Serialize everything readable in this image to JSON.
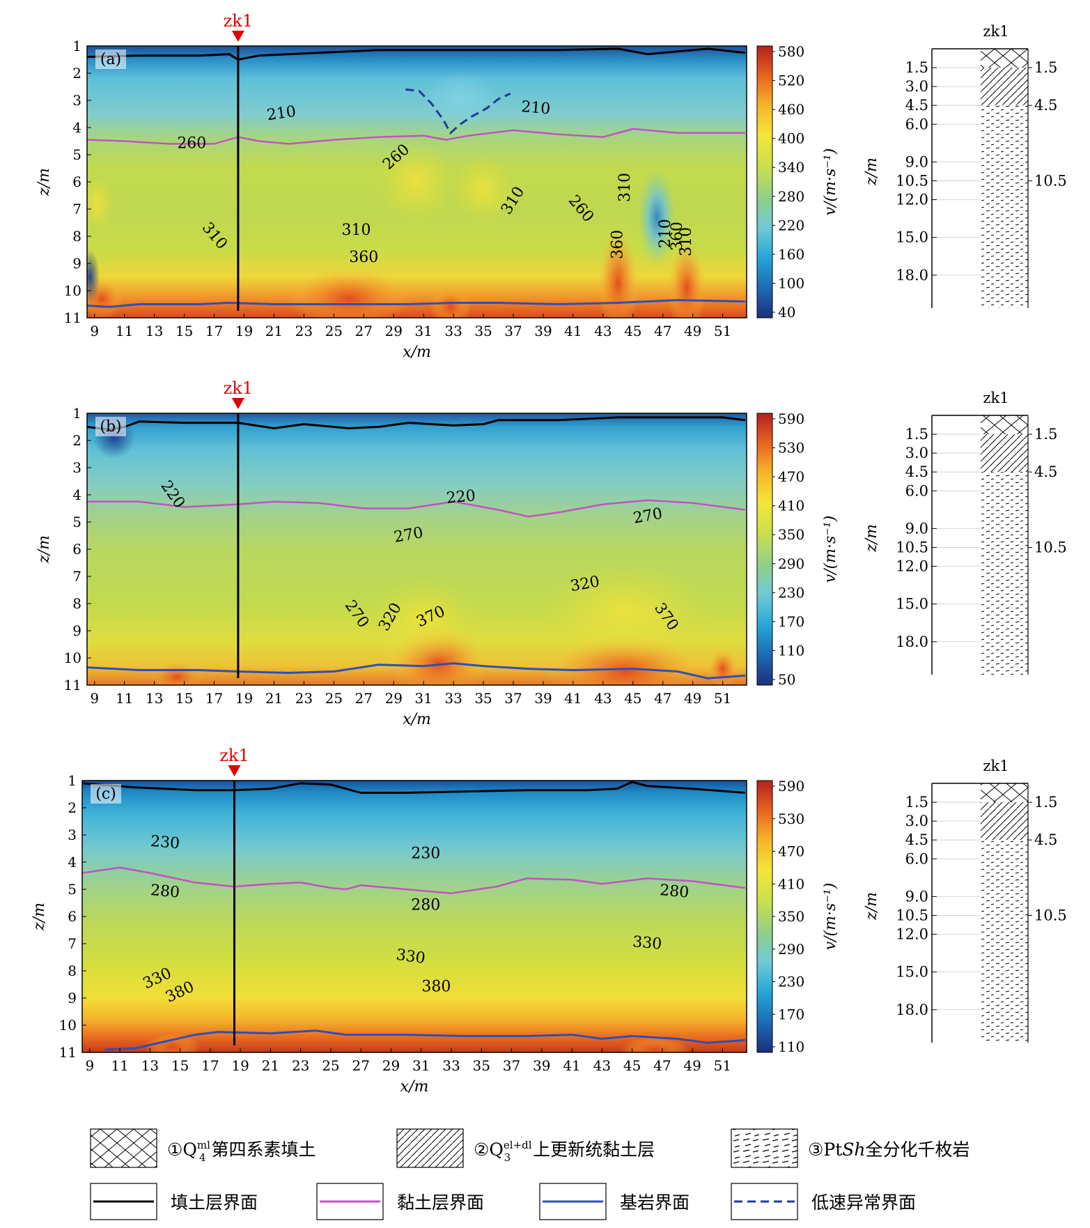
{
  "panels": [
    {
      "label": "(a)",
      "borehole": "zk1",
      "colorbar": {
        "ticks": [
          40,
          100,
          160,
          220,
          280,
          340,
          400,
          460,
          520,
          580
        ],
        "label": "v/(m·s⁻¹)"
      },
      "contour_labels": [
        {
          "text": "210",
          "x": 21.5,
          "z": 3.5,
          "rot": -8
        },
        {
          "text": "210",
          "x": 38.5,
          "z": 3.3,
          "rot": 5
        },
        {
          "text": "260",
          "x": 15.5,
          "z": 4.6,
          "rot": 0
        },
        {
          "text": "260",
          "x": 29.2,
          "z": 5.1,
          "rot": -42
        },
        {
          "text": "310",
          "x": 17.0,
          "z": 8.0,
          "rot": 50
        },
        {
          "text": "310",
          "x": 26.5,
          "z": 7.8,
          "rot": 0
        },
        {
          "text": "360",
          "x": 27.0,
          "z": 8.8,
          "rot": 0
        },
        {
          "text": "310",
          "x": 37.0,
          "z": 6.7,
          "rot": -58
        },
        {
          "text": "260",
          "x": 41.5,
          "z": 7.0,
          "rot": 50
        },
        {
          "text": "310",
          "x": 44.5,
          "z": 6.2,
          "rot": -90
        },
        {
          "text": "360",
          "x": 44.0,
          "z": 8.3,
          "rot": -90
        },
        {
          "text": "210",
          "x": 47.2,
          "z": 7.9,
          "rot": -90
        },
        {
          "text": "360",
          "x": 48.0,
          "z": 8.0,
          "rot": -90
        },
        {
          "text": "310",
          "x": 48.6,
          "z": 8.2,
          "rot": -90
        }
      ],
      "fill_boundary": [
        [
          8.5,
          1.4
        ],
        [
          12,
          1.35
        ],
        [
          16,
          1.35
        ],
        [
          18,
          1.3
        ],
        [
          18.6,
          1.5
        ],
        [
          20,
          1.35
        ],
        [
          24,
          1.25
        ],
        [
          28,
          1.15
        ],
        [
          30,
          1.15
        ],
        [
          32,
          1.15
        ],
        [
          36,
          1.15
        ],
        [
          40,
          1.15
        ],
        [
          44,
          1.1
        ],
        [
          46,
          1.3
        ],
        [
          48,
          1.2
        ],
        [
          50,
          1.1
        ],
        [
          52.5,
          1.25
        ]
      ],
      "clay_boundary": [
        [
          8.5,
          4.45
        ],
        [
          11,
          4.5
        ],
        [
          14,
          4.6
        ],
        [
          17,
          4.6
        ],
        [
          18.6,
          4.35
        ],
        [
          20,
          4.5
        ],
        [
          22,
          4.6
        ],
        [
          25,
          4.45
        ],
        [
          28,
          4.35
        ],
        [
          31,
          4.3
        ],
        [
          32.5,
          4.45
        ],
        [
          34,
          4.3
        ],
        [
          37,
          4.1
        ],
        [
          40,
          4.25
        ],
        [
          43,
          4.35
        ],
        [
          45,
          4.05
        ],
        [
          48,
          4.2
        ],
        [
          52.5,
          4.2
        ]
      ],
      "bedrock_boundary": [
        [
          8.5,
          10.55
        ],
        [
          10,
          10.6
        ],
        [
          12,
          10.5
        ],
        [
          16,
          10.5
        ],
        [
          18,
          10.45
        ],
        [
          21,
          10.5
        ],
        [
          25,
          10.5
        ],
        [
          30,
          10.5
        ],
        [
          33,
          10.45
        ],
        [
          36,
          10.45
        ],
        [
          40,
          10.5
        ],
        [
          44,
          10.45
        ],
        [
          48,
          10.35
        ],
        [
          52.5,
          10.4
        ]
      ],
      "anomaly_boundary": [
        [
          29.8,
          2.6
        ],
        [
          30.7,
          2.65
        ],
        [
          31.5,
          3.1
        ],
        [
          32.3,
          3.7
        ],
        [
          32.8,
          4.2
        ],
        [
          33.4,
          3.9
        ],
        [
          34.2,
          3.6
        ],
        [
          35.2,
          3.3
        ],
        [
          36,
          2.95
        ],
        [
          36.8,
          2.75
        ]
      ]
    },
    {
      "label": "(b)",
      "borehole": "zk1",
      "colorbar": {
        "ticks": [
          50,
          110,
          170,
          230,
          290,
          350,
          410,
          470,
          530,
          590
        ],
        "label": "v/(m·s⁻¹)"
      },
      "contour_labels": [
        {
          "text": "220",
          "x": 14.2,
          "z": 4.0,
          "rot": 55
        },
        {
          "text": "220",
          "x": 33.5,
          "z": 4.1,
          "rot": -5
        },
        {
          "text": "270",
          "x": 30.0,
          "z": 5.5,
          "rot": -10
        },
        {
          "text": "270",
          "x": 46.0,
          "z": 4.8,
          "rot": -10
        },
        {
          "text": "270",
          "x": 26.5,
          "z": 8.4,
          "rot": 55
        },
        {
          "text": "320",
          "x": 28.8,
          "z": 8.5,
          "rot": -60
        },
        {
          "text": "370",
          "x": 31.5,
          "z": 8.5,
          "rot": -25
        },
        {
          "text": "320",
          "x": 41.8,
          "z": 7.3,
          "rot": -10
        },
        {
          "text": "370",
          "x": 47.2,
          "z": 8.5,
          "rot": 55
        }
      ],
      "fill_boundary": [
        [
          8.5,
          1.5
        ],
        [
          10,
          1.6
        ],
        [
          11,
          1.5
        ],
        [
          12,
          1.3
        ],
        [
          15,
          1.35
        ],
        [
          18.6,
          1.35
        ],
        [
          21,
          1.55
        ],
        [
          23,
          1.4
        ],
        [
          26,
          1.55
        ],
        [
          28,
          1.5
        ],
        [
          30,
          1.35
        ],
        [
          33,
          1.45
        ],
        [
          35,
          1.4
        ],
        [
          36,
          1.25
        ],
        [
          40,
          1.25
        ],
        [
          44,
          1.15
        ],
        [
          48,
          1.15
        ],
        [
          51,
          1.15
        ],
        [
          52.5,
          1.25
        ]
      ],
      "clay_boundary": [
        [
          8.5,
          4.25
        ],
        [
          12,
          4.25
        ],
        [
          15,
          4.45
        ],
        [
          18.6,
          4.35
        ],
        [
          21,
          4.25
        ],
        [
          24,
          4.3
        ],
        [
          27,
          4.5
        ],
        [
          30,
          4.5
        ],
        [
          33,
          4.25
        ],
        [
          36,
          4.55
        ],
        [
          38,
          4.8
        ],
        [
          40,
          4.65
        ],
        [
          43,
          4.35
        ],
        [
          46,
          4.2
        ],
        [
          49,
          4.3
        ],
        [
          52.5,
          4.55
        ]
      ],
      "bedrock_boundary": [
        [
          8.5,
          10.35
        ],
        [
          12,
          10.45
        ],
        [
          16,
          10.45
        ],
        [
          18.6,
          10.5
        ],
        [
          22,
          10.55
        ],
        [
          25,
          10.5
        ],
        [
          28,
          10.25
        ],
        [
          31,
          10.3
        ],
        [
          33,
          10.2
        ],
        [
          35,
          10.3
        ],
        [
          38,
          10.4
        ],
        [
          41,
          10.45
        ],
        [
          45,
          10.4
        ],
        [
          48,
          10.5
        ],
        [
          50,
          10.75
        ],
        [
          52.5,
          10.65
        ]
      ],
      "anomaly_boundary": []
    },
    {
      "label": "(c)",
      "borehole": "zk1",
      "colorbar": {
        "ticks": [
          110,
          170,
          230,
          290,
          350,
          410,
          470,
          530,
          590
        ],
        "label": "v/(m·s⁻¹)"
      },
      "contour_labels": [
        {
          "text": "230",
          "x": 14.0,
          "z": 3.3,
          "rot": 5
        },
        {
          "text": "230",
          "x": 31.3,
          "z": 3.7,
          "rot": 0
        },
        {
          "text": "280",
          "x": 14.0,
          "z": 5.1,
          "rot": 5
        },
        {
          "text": "280",
          "x": 31.3,
          "z": 5.6,
          "rot": 0
        },
        {
          "text": "280",
          "x": 47.8,
          "z": 5.1,
          "rot": 5
        },
        {
          "text": "330",
          "x": 13.5,
          "z": 8.3,
          "rot": -25
        },
        {
          "text": "380",
          "x": 15.0,
          "z": 8.8,
          "rot": -25
        },
        {
          "text": "330",
          "x": 30.3,
          "z": 7.5,
          "rot": 8
        },
        {
          "text": "380",
          "x": 32.0,
          "z": 8.6,
          "rot": 0
        },
        {
          "text": "330",
          "x": 46.0,
          "z": 7.0,
          "rot": 5
        }
      ],
      "fill_boundary": [
        [
          8.5,
          1.1
        ],
        [
          12,
          1.25
        ],
        [
          16,
          1.35
        ],
        [
          18.6,
          1.35
        ],
        [
          21,
          1.3
        ],
        [
          23,
          1.1
        ],
        [
          25,
          1.15
        ],
        [
          27,
          1.45
        ],
        [
          30,
          1.45
        ],
        [
          34,
          1.4
        ],
        [
          38,
          1.35
        ],
        [
          42,
          1.35
        ],
        [
          44,
          1.3
        ],
        [
          45,
          1.05
        ],
        [
          46,
          1.2
        ],
        [
          49,
          1.3
        ],
        [
          52.5,
          1.45
        ]
      ],
      "clay_boundary": [
        [
          8.5,
          4.4
        ],
        [
          11,
          4.2
        ],
        [
          13,
          4.4
        ],
        [
          16,
          4.75
        ],
        [
          18.6,
          4.9
        ],
        [
          21,
          4.8
        ],
        [
          23,
          4.75
        ],
        [
          25,
          4.95
        ],
        [
          26,
          5.0
        ],
        [
          27,
          4.85
        ],
        [
          30,
          5.0
        ],
        [
          33,
          5.15
        ],
        [
          36,
          4.9
        ],
        [
          38,
          4.6
        ],
        [
          41,
          4.65
        ],
        [
          43,
          4.8
        ],
        [
          46,
          4.6
        ],
        [
          49,
          4.7
        ],
        [
          52.5,
          4.95
        ]
      ],
      "bedrock_boundary": [
        [
          10,
          10.9
        ],
        [
          12,
          10.85
        ],
        [
          14,
          10.6
        ],
        [
          16,
          10.35
        ],
        [
          17.5,
          10.25
        ],
        [
          21,
          10.3
        ],
        [
          24,
          10.2
        ],
        [
          26,
          10.35
        ],
        [
          30,
          10.35
        ],
        [
          34,
          10.4
        ],
        [
          38,
          10.4
        ],
        [
          41,
          10.35
        ],
        [
          43,
          10.5
        ],
        [
          45,
          10.4
        ],
        [
          48,
          10.5
        ],
        [
          50,
          10.65
        ],
        [
          52.5,
          10.55
        ]
      ],
      "anomaly_boundary": []
    }
  ],
  "axes": {
    "x_label": "x/m",
    "z_label": "z/m",
    "x_ticks": [
      "9",
      "11",
      "13",
      "15",
      "17",
      "19",
      "21",
      "23",
      "25",
      "27",
      "29",
      "31",
      "33",
      "35",
      "37",
      "39",
      "41",
      "43",
      "45",
      "47",
      "49",
      "51"
    ],
    "z_ticks": [
      "1",
      "2",
      "3",
      "4",
      "5",
      "6",
      "7",
      "8",
      "9",
      "10",
      "11"
    ]
  },
  "boreholes": {
    "title": "zk1",
    "left_depths": [
      "1.5",
      "3.0",
      "4.5",
      "6.0",
      "9.0",
      "10.5",
      "12.0",
      "15.0",
      "18.0"
    ],
    "right_depths": [
      "1.5",
      "4.5",
      "10.5"
    ]
  },
  "legend": {
    "row1": [
      {
        "pattern": "crosshatch",
        "circ": "①",
        "sym": "Q",
        "sub": "4",
        "sup": "ml",
        "text": "第四系素填土"
      },
      {
        "pattern": "diagonal",
        "circ": "②",
        "sym": "Q",
        "sub": "3",
        "sup": "el+dl",
        "text": "上更新统黏土层"
      },
      {
        "pattern": "dashes",
        "circ": "③",
        "sym": "Pt",
        "italic": "Sh",
        "text": "全分化千枚岩"
      }
    ],
    "row2": [
      {
        "line": "#000000",
        "dash": "",
        "text": "填土层界面"
      },
      {
        "line": "#c252c2",
        "dash": "",
        "text": "黏土层界面"
      },
      {
        "line": "#2e4fb8",
        "dash": "",
        "text": "基岩界面"
      },
      {
        "line": "#1f3b9a",
        "dash": "12 7",
        "text": "低速异常界面"
      }
    ]
  },
  "colors": {
    "fill_line": "#000000",
    "clay_line": "#c252c2",
    "bedrock_line": "#2e4fb8",
    "anomaly_line": "#1f3b9a",
    "borehole_marker": "#e00000"
  }
}
